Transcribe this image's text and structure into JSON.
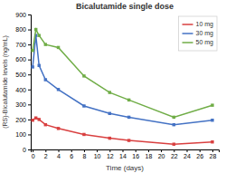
{
  "chart_data": {
    "type": "line",
    "title": "Bicalutamide single dose",
    "xlabel": "Time (days)",
    "ylabel": "(RS)-Bicalutamide levels (ng/mL)",
    "x": [
      0,
      0.5,
      1,
      2,
      4,
      8,
      12,
      15,
      22,
      28
    ],
    "series": [
      {
        "name": "10 mg",
        "color": "#d94040",
        "values": [
          195,
          210,
          200,
          165,
          140,
          100,
          75,
          60,
          35,
          50
        ]
      },
      {
        "name": "30 mg",
        "color": "#4472c4",
        "values": [
          550,
          760,
          560,
          465,
          400,
          290,
          240,
          215,
          165,
          195
        ]
      },
      {
        "name": "50 mg",
        "color": "#70ad47",
        "values": [
          660,
          800,
          760,
          700,
          680,
          490,
          380,
          330,
          215,
          295
        ]
      }
    ],
    "xlim": [
      -0.3,
      29
    ],
    "ylim": [
      0,
      900
    ],
    "xticks": [
      0,
      2,
      4,
      6,
      8,
      10,
      12,
      14,
      16,
      18,
      20,
      22,
      24,
      26,
      28
    ],
    "yticks": [
      0,
      100,
      200,
      300,
      400,
      500,
      600,
      700,
      800,
      900
    ],
    "marker": "square",
    "grid": false,
    "legend": "upper right"
  }
}
